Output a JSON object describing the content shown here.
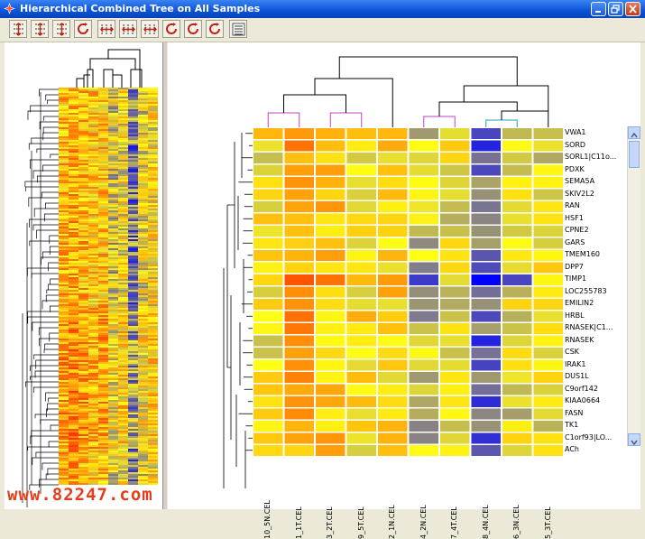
{
  "window": {
    "title": "Hierarchical Combined Tree on All Samples",
    "buttons": [
      "minimize",
      "maximize",
      "close"
    ]
  },
  "toolbar": {
    "buttons": [
      {
        "name": "expand-rows-icon"
      },
      {
        "name": "expand-rows-2-icon"
      },
      {
        "name": "fit-rows-icon"
      },
      {
        "name": "refresh-icon"
      },
      {
        "name": "expand-columns-icon"
      },
      {
        "name": "collapse-columns-icon"
      },
      {
        "name": "fit-columns-icon"
      },
      {
        "name": "refresh-icon"
      },
      {
        "name": "refresh-icon"
      },
      {
        "name": "refresh-icon"
      },
      {
        "name": "properties-icon"
      }
    ]
  },
  "heatmap": {
    "columns": [
      "10_5N.CEL",
      "1_1T.CEL",
      "3_2T.CEL",
      "9_5T.CEL",
      "2_1N.CEL",
      "4_2N.CEL",
      "7_4T.CEL",
      "8_4N.CEL",
      "6_3N.CEL",
      "5_3T.CEL"
    ],
    "genes": [
      "VWA1",
      "SORD",
      "SORL1|C11o...",
      "PDXK",
      "SEMA5A",
      "SKIV2L2",
      "RAN",
      "HSF1",
      "CPNE2",
      "GARS",
      "TMEM160",
      "DPP7",
      "TIMP1",
      "LOC255783",
      "EMILIN2",
      "HRBL",
      "RNASEK|C1...",
      "RNASEK",
      "CSK",
      "IRAK1",
      "DUS1L",
      "C9orf142",
      "KIAA0664",
      "FASN",
      "TK1",
      "C1orf93|LO...",
      "ACh"
    ],
    "colors": {
      "low": "#0000ff",
      "mid": "#ffff00",
      "high": "#ff3300"
    }
  },
  "watermark": "www.82247.com"
}
